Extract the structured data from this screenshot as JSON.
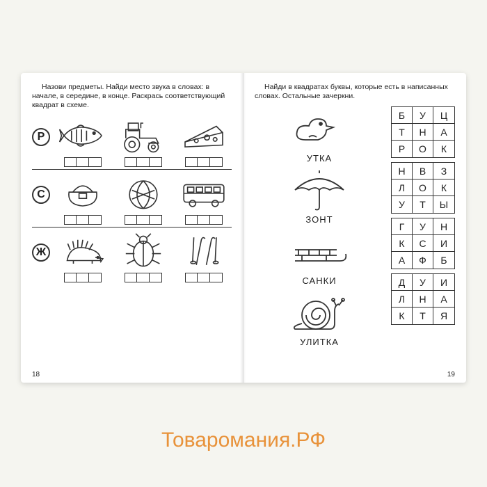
{
  "left": {
    "instruction": "Назови предметы. Найди место звука в словах: в начале, в середине, в конце. Раскрась соответствующий квадрат в схеме.",
    "rows": [
      {
        "letter": "Р"
      },
      {
        "letter": "С"
      },
      {
        "letter": "Ж"
      }
    ],
    "page_num": "18"
  },
  "right": {
    "instruction": "Найди в квадратах буквы, которые есть в написанных словах. Остальные зачеркни.",
    "items": [
      {
        "word": "УТКА"
      },
      {
        "word": "ЗОНТ"
      },
      {
        "word": "САНКИ"
      },
      {
        "word": "УЛИТКА"
      }
    ],
    "grids": [
      [
        "Б",
        "У",
        "Ц",
        "Т",
        "Н",
        "А",
        "Р",
        "О",
        "К"
      ],
      [
        "Н",
        "В",
        "З",
        "Л",
        "О",
        "К",
        "У",
        "Т",
        "Ы"
      ],
      [
        "Г",
        "У",
        "Н",
        "К",
        "С",
        "И",
        "А",
        "Ф",
        "Б"
      ],
      [
        "Д",
        "У",
        "И",
        "Л",
        "Н",
        "А",
        "К",
        "Т",
        "Я"
      ]
    ],
    "page_num": "19"
  },
  "watermark": "Товаромания.РФ"
}
